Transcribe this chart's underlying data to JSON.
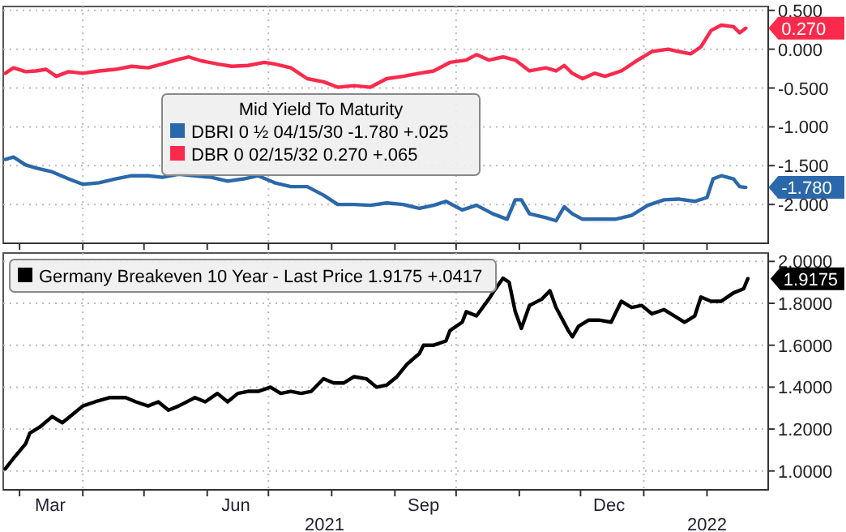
{
  "chart_data": [
    {
      "type": "line",
      "legend_title": "Mid Yield To Maturity",
      "xlim": [
        "2021-02-21",
        "2022-03-03"
      ],
      "ylim": [
        -2.5,
        0.55
      ],
      "yticks": [
        {
          "value": 0.5,
          "label": "0.500"
        },
        {
          "value": 0,
          "label": "0.000"
        },
        {
          "value": -0.5,
          "label": "-0.500"
        },
        {
          "value": -1,
          "label": "-1.000"
        },
        {
          "value": -1.5,
          "label": "-1.500"
        },
        {
          "value": -2,
          "label": "-2.000"
        }
      ],
      "xticks": [
        {
          "value": "2021-03-01",
          "label": null
        },
        {
          "value": "2021-04-01",
          "label": null
        },
        {
          "value": "2021-05-01",
          "label": null
        },
        {
          "value": "2021-06-01",
          "label": null
        },
        {
          "value": "2021-07-01",
          "label": null
        },
        {
          "value": "2021-08-01",
          "label": null
        },
        {
          "value": "2021-09-01",
          "label": null
        },
        {
          "value": "2021-10-01",
          "label": null
        },
        {
          "value": "2021-11-01",
          "label": null
        },
        {
          "value": "2021-12-01",
          "label": null
        },
        {
          "value": "2022-01-01",
          "label": null
        },
        {
          "value": "2022-02-01",
          "label": null
        }
      ],
      "tick_labels": "y",
      "grid": true,
      "legend": "center",
      "line_style": "solid",
      "series": [
        {
          "name": "DBRI 0 ½ 04/15/30 -1.780 +.025",
          "color": "#2b68ab",
          "x": [
            "2021-02-22",
            "2021-02-26",
            "2021-03-04",
            "2021-03-09",
            "2021-03-17",
            "2021-03-25",
            "2021-04-01",
            "2021-04-09",
            "2021-04-17",
            "2021-04-25",
            "2021-05-03",
            "2021-05-10",
            "2021-05-18",
            "2021-05-26",
            "2021-06-03",
            "2021-06-11",
            "2021-06-19",
            "2021-06-26",
            "2021-07-04",
            "2021-07-12",
            "2021-07-20",
            "2021-07-28",
            "2021-08-04",
            "2021-08-12",
            "2021-08-20",
            "2021-08-28",
            "2021-09-05",
            "2021-09-13",
            "2021-09-20",
            "2021-09-26",
            "2021-10-04",
            "2021-10-11",
            "2021-10-19",
            "2021-10-26",
            "2021-10-30",
            "2021-11-02",
            "2021-11-06",
            "2021-11-14",
            "2021-11-19",
            "2021-11-23",
            "2021-11-27",
            "2021-12-02",
            "2021-12-10",
            "2021-12-18",
            "2021-12-26",
            "2022-01-03",
            "2022-01-11",
            "2022-01-18",
            "2022-01-26",
            "2022-02-01",
            "2022-02-04",
            "2022-02-08",
            "2022-02-14",
            "2022-02-17",
            "2022-02-20"
          ],
          "values": [
            -1.42,
            -1.39,
            -1.49,
            -1.53,
            -1.58,
            -1.67,
            -1.74,
            -1.72,
            -1.67,
            -1.63,
            -1.63,
            -1.65,
            -1.61,
            -1.63,
            -1.65,
            -1.7,
            -1.67,
            -1.63,
            -1.72,
            -1.77,
            -1.77,
            -1.88,
            -2.0,
            -2.0,
            -2.01,
            -1.98,
            -2.0,
            -2.05,
            -2.01,
            -1.96,
            -2.07,
            -2.01,
            -2.12,
            -2.19,
            -1.94,
            -1.94,
            -2.12,
            -2.17,
            -2.21,
            -2.03,
            -2.12,
            -2.19,
            -2.19,
            -2.19,
            -2.14,
            -2.01,
            -1.94,
            -1.93,
            -1.96,
            -1.91,
            -1.67,
            -1.63,
            -1.67,
            -1.77,
            -1.78
          ]
        },
        {
          "name": "DBR 0 02/15/32 0.270 +.065",
          "color": "#fb2a4c",
          "x": [
            "2021-02-22",
            "2021-02-26",
            "2021-03-04",
            "2021-03-09",
            "2021-03-14",
            "2021-03-19",
            "2021-03-25",
            "2021-04-01",
            "2021-04-09",
            "2021-04-17",
            "2021-04-25",
            "2021-05-03",
            "2021-05-10",
            "2021-05-18",
            "2021-05-23",
            "2021-05-29",
            "2021-06-06",
            "2021-06-13",
            "2021-06-21",
            "2021-06-29",
            "2021-07-04",
            "2021-07-12",
            "2021-07-20",
            "2021-07-28",
            "2021-08-04",
            "2021-08-12",
            "2021-08-20",
            "2021-08-28",
            "2021-09-05",
            "2021-09-13",
            "2021-09-20",
            "2021-09-28",
            "2021-10-06",
            "2021-10-11",
            "2021-10-17",
            "2021-10-24",
            "2021-10-30",
            "2021-11-06",
            "2021-11-14",
            "2021-11-19",
            "2021-11-23",
            "2021-11-27",
            "2021-12-02",
            "2021-12-08",
            "2021-12-13",
            "2021-12-21",
            "2021-12-29",
            "2022-01-05",
            "2022-01-13",
            "2022-01-18",
            "2022-01-24",
            "2022-01-29",
            "2022-02-03",
            "2022-02-08",
            "2022-02-14",
            "2022-02-17",
            "2022-02-20"
          ],
          "values": [
            -0.31,
            -0.24,
            -0.29,
            -0.28,
            -0.26,
            -0.35,
            -0.29,
            -0.31,
            -0.28,
            -0.26,
            -0.22,
            -0.24,
            -0.19,
            -0.13,
            -0.1,
            -0.15,
            -0.19,
            -0.22,
            -0.21,
            -0.17,
            -0.19,
            -0.24,
            -0.38,
            -0.42,
            -0.49,
            -0.47,
            -0.49,
            -0.38,
            -0.35,
            -0.31,
            -0.28,
            -0.17,
            -0.14,
            -0.07,
            -0.14,
            -0.1,
            -0.14,
            -0.28,
            -0.24,
            -0.28,
            -0.21,
            -0.31,
            -0.38,
            -0.31,
            -0.35,
            -0.28,
            -0.14,
            -0.03,
            0.0,
            -0.03,
            -0.06,
            0.03,
            0.24,
            0.31,
            0.29,
            0.21,
            0.27
          ]
        }
      ],
      "annotations": [
        {
          "text": "0.270",
          "x": "2022-02-20",
          "y": 0.27
        },
        {
          "text": "-1.780",
          "x": "2022-02-20",
          "y": -1.78
        }
      ]
    },
    {
      "type": "line",
      "xlim": [
        "2021-02-21",
        "2022-03-03"
      ],
      "ylim": [
        0.91,
        2.04
      ],
      "yticks": [
        {
          "value": 2,
          "label": "2.0000"
        },
        {
          "value": 1.8,
          "label": "1.8000"
        },
        {
          "value": 1.6,
          "label": "1.6000"
        },
        {
          "value": 1.4,
          "label": "1.4000"
        },
        {
          "value": 1.2,
          "label": "1.2000"
        },
        {
          "value": 1,
          "label": "1.0000"
        }
      ],
      "xticks": [
        {
          "value": "2021-03-01",
          "label": null
        },
        {
          "value": "2021-04-01",
          "label": null
        },
        {
          "value": "2021-05-01",
          "label": null
        },
        {
          "value": "2021-06-01",
          "label": null
        },
        {
          "value": "2021-07-01",
          "label": null
        },
        {
          "value": "2021-08-01",
          "label": null
        },
        {
          "value": "2021-09-01",
          "label": null
        },
        {
          "value": "2021-10-01",
          "label": null
        },
        {
          "value": "2021-11-01",
          "label": null
        },
        {
          "value": "2021-12-01",
          "label": null
        },
        {
          "value": "2022-01-01",
          "label": null
        },
        {
          "value": "2022-02-01",
          "label": null
        },
        {
          "value": "2021-03-16",
          "label": "Mar"
        },
        {
          "value": "2021-06-15",
          "label": "Jun"
        },
        {
          "value": "2021-09-15",
          "label": "Sep"
        },
        {
          "value": "2021-12-15",
          "label": "Dec"
        }
      ],
      "grid": true,
      "legend": "top left",
      "line_style": "solid",
      "series": [
        {
          "name": "Germany Breakeven 10 Year - Last Price 1.9175 +.0417",
          "color": "#000000",
          "x": [
            "2021-02-22",
            "2021-02-26",
            "2021-03-04",
            "2021-03-06",
            "2021-03-11",
            "2021-03-17",
            "2021-03-22",
            "2021-03-27",
            "2021-04-01",
            "2021-04-07",
            "2021-04-14",
            "2021-04-22",
            "2021-04-27",
            "2021-05-03",
            "2021-05-08",
            "2021-05-13",
            "2021-05-18",
            "2021-05-26",
            "2021-05-31",
            "2021-06-06",
            "2021-06-11",
            "2021-06-16",
            "2021-06-21",
            "2021-06-26",
            "2021-07-02",
            "2021-07-07",
            "2021-07-12",
            "2021-07-17",
            "2021-07-22",
            "2021-07-28",
            "2021-08-02",
            "2021-08-07",
            "2021-08-12",
            "2021-08-18",
            "2021-08-23",
            "2021-08-28",
            "2021-09-02",
            "2021-09-07",
            "2021-09-13",
            "2021-09-15",
            "2021-09-20",
            "2021-09-26",
            "2021-09-28",
            "2021-10-04",
            "2021-10-06",
            "2021-10-11",
            "2021-10-17",
            "2021-10-19",
            "2021-10-24",
            "2021-10-27",
            "2021-10-30",
            "2021-11-02",
            "2021-11-06",
            "2021-11-12",
            "2021-11-16",
            "2021-11-19",
            "2021-11-25",
            "2021-11-27",
            "2021-11-30",
            "2021-12-05",
            "2021-12-10",
            "2021-12-16",
            "2021-12-21",
            "2021-12-26",
            "2021-12-31",
            "2022-01-05",
            "2022-01-11",
            "2022-01-16",
            "2022-01-21",
            "2022-01-26",
            "2022-01-29",
            "2022-02-03",
            "2022-02-08",
            "2022-02-14",
            "2022-02-19",
            "2022-02-21"
          ],
          "values": [
            1.01,
            1.06,
            1.13,
            1.18,
            1.21,
            1.26,
            1.23,
            1.27,
            1.31,
            1.33,
            1.35,
            1.35,
            1.33,
            1.31,
            1.33,
            1.29,
            1.31,
            1.35,
            1.33,
            1.37,
            1.33,
            1.37,
            1.38,
            1.38,
            1.4,
            1.37,
            1.38,
            1.37,
            1.38,
            1.44,
            1.42,
            1.42,
            1.45,
            1.44,
            1.4,
            1.41,
            1.45,
            1.51,
            1.56,
            1.6,
            1.6,
            1.62,
            1.67,
            1.71,
            1.76,
            1.74,
            1.82,
            1.85,
            1.92,
            1.9,
            1.76,
            1.68,
            1.79,
            1.82,
            1.86,
            1.78,
            1.67,
            1.64,
            1.69,
            1.72,
            1.72,
            1.71,
            1.81,
            1.78,
            1.79,
            1.75,
            1.77,
            1.74,
            1.71,
            1.74,
            1.83,
            1.81,
            1.81,
            1.85,
            1.87,
            1.9175
          ]
        }
      ],
      "annotations": [
        {
          "text": "1.9175",
          "x": "2022-02-21",
          "y": 1.9175
        },
        "2021",
        "2022"
      ]
    }
  ]
}
